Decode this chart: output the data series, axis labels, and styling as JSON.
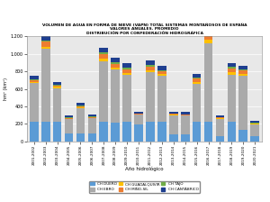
{
  "title_line1": "VOLUMEN DE AGUA EN FORMA DE NIEVE (VAPN) TOTAL SISTEMAS MONTAÑOSOS DE ESPAÑA",
  "title_line2": "VALORES ANUALES. PROMEDIO",
  "title_line3": "DISTRIBUCIÓN POR CONFEDERACIÓN HIDROGRÁFICA",
  "xlabel": "Año hidrológico",
  "ylabel": "hm³ (km³)",
  "years": [
    "2001-2002",
    "2002-2003",
    "2003-2004",
    "2004-2005",
    "2005-2006",
    "2006-2007",
    "2007-2008",
    "2008-2009",
    "2009-2010",
    "2010-2011",
    "2011-2012",
    "2012-2013",
    "2013-2014",
    "2014-2015",
    "2015-2016",
    "2016-2017",
    "2017-2018",
    "2018-2019",
    "2019-2020",
    "2020-2021"
  ],
  "legend_labels": [
    "CH DUERO",
    "CH EBRO",
    "CH GUADALQUIVIR",
    "CH MIÑO-SIL",
    "CH TAJO",
    "CH CANTÁBRICO"
  ],
  "colors": [
    "#5B9BD5",
    "#AAAAAA",
    "#FFC000",
    "#ED7D31",
    "#70AD47",
    "#1F3F8F"
  ],
  "data": {
    "CH DUERO": [
      220,
      225,
      220,
      90,
      95,
      90,
      225,
      210,
      220,
      195,
      220,
      220,
      85,
      85,
      220,
      225,
      55,
      220,
      135,
      55
    ],
    "CH EBRO": [
      450,
      830,
      390,
      165,
      280,
      175,
      690,
      610,
      540,
      110,
      570,
      530,
      215,
      210,
      440,
      900,
      205,
      545,
      620,
      140
    ],
    "CH GUADALQUIVIR": [
      12,
      28,
      12,
      5,
      10,
      5,
      28,
      22,
      22,
      5,
      22,
      18,
      5,
      5,
      18,
      38,
      5,
      22,
      18,
      5
    ],
    "CH MIÑO-SIL": [
      18,
      55,
      18,
      8,
      18,
      8,
      55,
      45,
      45,
      8,
      45,
      36,
      8,
      8,
      36,
      72,
      8,
      45,
      36,
      8
    ],
    "CH TAJO": [
      8,
      18,
      8,
      4,
      8,
      4,
      18,
      16,
      16,
      4,
      16,
      12,
      4,
      4,
      12,
      25,
      4,
      16,
      12,
      4
    ],
    "CH CANTÁBRICO": [
      45,
      55,
      35,
      25,
      25,
      20,
      55,
      55,
      50,
      18,
      50,
      45,
      18,
      22,
      40,
      72,
      18,
      50,
      45,
      18
    ]
  },
  "ylim": [
    0,
    1200
  ],
  "yticks": [
    0,
    200,
    400,
    600,
    800,
    1000,
    1200
  ],
  "ytick_labels": [
    "0",
    "200",
    "400",
    "600",
    "800",
    "1.000",
    "1.200"
  ],
  "bg_color": "#FFFFFF",
  "plot_bg": "#E8E8E8",
  "grid_color": "#FFFFFF"
}
